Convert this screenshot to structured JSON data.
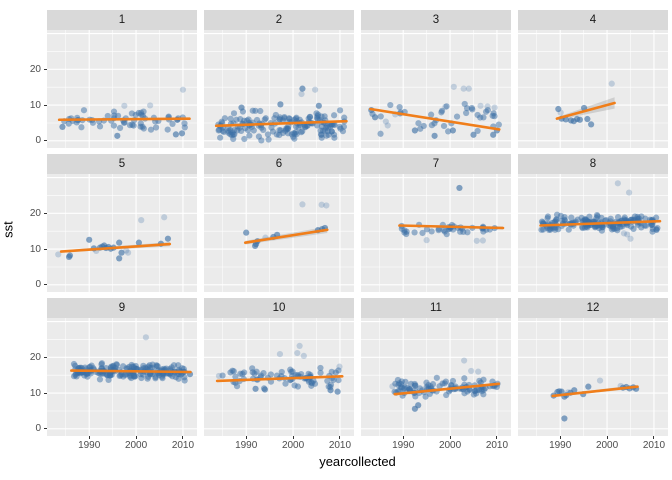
{
  "chart_data": {
    "type": "scatter",
    "title": "",
    "xlabel": "yearcollected",
    "ylabel": "sst",
    "facet_labels": [
      "1",
      "2",
      "3",
      "4",
      "5",
      "6",
      "7",
      "8",
      "9",
      "10",
      "11",
      "12"
    ],
    "x_ticks": [
      1990,
      2000,
      2010
    ],
    "y_ticks": [
      20,
      10,
      0
    ],
    "xlim": [
      1981,
      2013
    ],
    "ylim": [
      -2,
      31
    ],
    "grid": {
      "x_major": [
        1990,
        2000,
        2010
      ],
      "x_minor": [
        1985,
        1995,
        2005
      ],
      "y_major": [
        0,
        10,
        20,
        30
      ],
      "y_minor": [
        5,
        15,
        25
      ]
    },
    "legend": "none",
    "style": {
      "point_color": "#3c6fa5",
      "point_alpha": 0.5,
      "faint_alpha": 0.26,
      "point_radius": 3.1,
      "trend_color": "#f07e1a",
      "trend_width": 2.6,
      "band_color": "#777777",
      "band_alpha": 0.25,
      "panel_bg": "#ebebeb",
      "strip_bg": "#d9d9d9",
      "strip_text": "#1a1a1a",
      "grid_color": "#ffffff",
      "axis_text": "#4d4d4d",
      "axis_title": "#000000",
      "tick_color": "#333333"
    },
    "panels": [
      {
        "label": "1",
        "seed": 11,
        "cloud": {
          "n": 62,
          "x": [
            1984,
            2011
          ],
          "y": 5.8,
          "spread": 2.3
        },
        "points": [
          [
            1996,
            1.4
          ],
          [
            2008.5,
            1.8
          ],
          [
            1984.3,
            3.9
          ],
          [
            2009.8,
            2.1
          ]
        ],
        "faint": [
          [
            2010,
            14.3
          ],
          [
            1997.5,
            9.8
          ],
          [
            2003,
            9.9
          ]
        ],
        "trend": [
          [
            1983.6,
            5.9
          ],
          [
            2011.4,
            6.2
          ]
        ],
        "band": [
          0,
          0
        ]
      },
      {
        "label": "2",
        "seed": 22,
        "cloud": {
          "n": 170,
          "x": [
            1984,
            2011
          ],
          "y": 4.4,
          "spread": 2.9
        },
        "points": [
          [
            2002,
            14.6
          ],
          [
            1997.3,
            10.2
          ],
          [
            2005.5,
            9.8
          ],
          [
            1989,
            9.3
          ]
        ],
        "faint": [
          [
            2004.7,
            14.3
          ],
          [
            2001.8,
            13.1
          ]
        ],
        "trend": [
          [
            1983.6,
            4.2
          ],
          [
            2011.4,
            5.5
          ]
        ],
        "band": [
          0,
          0
        ]
      },
      {
        "label": "3",
        "seed": 33,
        "cloud": {
          "n": 38,
          "x": [
            1983,
            2010.5
          ],
          "y": 6.3,
          "spread": 2.9
        },
        "points": [
          [
            1996.7,
            1.4
          ],
          [
            2005,
            1.7
          ],
          [
            2009.2,
            1.7
          ],
          [
            2010,
            2.9
          ],
          [
            1992.5,
            2.9
          ],
          [
            2000.6,
            2.9
          ],
          [
            1983.2,
            8.6
          ],
          [
            1984,
            6.6
          ]
        ],
        "faint": [
          [
            2000.8,
            15.1
          ],
          [
            2002.9,
            14.6
          ],
          [
            2004,
            14.6
          ],
          [
            1986.3,
            5.4
          ],
          [
            1986.7,
            4.3
          ],
          [
            1988.3,
            7.4
          ],
          [
            1999,
            9.5
          ],
          [
            2006.5,
            9.8
          ],
          [
            2008,
            9.6
          ],
          [
            2009.5,
            9.3
          ]
        ],
        "trend": [
          [
            1983,
            8.9
          ],
          [
            2010.5,
            3.2
          ]
        ],
        "band": [
          0,
          0
        ]
      },
      {
        "label": "4",
        "seed": 44,
        "cloud": {
          "n": 0,
          "x": [
            1990,
            2001
          ],
          "y": 7,
          "spread": 1
        },
        "points": [
          [
            1989.6,
            8.9
          ],
          [
            1990.3,
            6.2
          ],
          [
            1991.2,
            6.0
          ],
          [
            1992.3,
            5.7
          ],
          [
            1992.9,
            5.5
          ],
          [
            1993.6,
            6.1
          ],
          [
            1994.2,
            5.9
          ],
          [
            1995.1,
            9.2
          ],
          [
            1995.8,
            6.1
          ],
          [
            1996.6,
            4.6
          ]
        ],
        "faint": [
          [
            1990.1,
            7.9
          ],
          [
            2001,
            16.0
          ]
        ],
        "trend": [
          [
            1989.3,
            6.2
          ],
          [
            2001.6,
            10.6
          ]
        ],
        "band": [
          0.4,
          1.6
        ]
      },
      {
        "label": "5",
        "seed": 55,
        "cloud": {
          "n": 0,
          "x": [
            1984,
            2007
          ],
          "y": 10,
          "spread": 1
        },
        "points": [
          [
            1985.7,
            7.8
          ],
          [
            1985.9,
            8.2
          ],
          [
            1990,
            12.6
          ],
          [
            1991,
            10.2
          ],
          [
            1992.3,
            10.4
          ],
          [
            1992.8,
            10.7
          ],
          [
            1993.2,
            11.0
          ],
          [
            1993.6,
            10.3
          ],
          [
            1994.1,
            10.6
          ],
          [
            1994.6,
            10.1
          ],
          [
            1995.2,
            10.4
          ],
          [
            1996.4,
            11.8
          ],
          [
            1996.4,
            7.4
          ],
          [
            1996.9,
            9.0
          ],
          [
            2000.6,
            11.8
          ],
          [
            2005.3,
            11.5
          ],
          [
            2006.8,
            12.9
          ]
        ],
        "faint": [
          [
            1983.4,
            8.5
          ],
          [
            1991.5,
            9.5
          ],
          [
            1997.9,
            9.6
          ],
          [
            1998.3,
            9.0
          ],
          [
            2001.1,
            18.1
          ],
          [
            2006,
            18.9
          ]
        ],
        "trend": [
          [
            1984,
            9.3
          ],
          [
            2007.2,
            11.4
          ]
        ],
        "band": [
          0.3,
          0.6
        ]
      },
      {
        "label": "6",
        "seed": 66,
        "cloud": {
          "n": 0,
          "x": [
            1990,
            2007
          ],
          "y": 13,
          "spread": 1
        },
        "points": [
          [
            1990,
            14.6
          ],
          [
            1991.9,
            10.9
          ],
          [
            1992.1,
            11.4
          ],
          [
            1992.4,
            12.2
          ],
          [
            1995.8,
            13.4
          ],
          [
            1996.6,
            14.0
          ],
          [
            2005.3,
            15.3
          ],
          [
            2006.2,
            15.6
          ],
          [
            2006.8,
            15.9
          ]
        ],
        "faint": [
          [
            1994.1,
            13.2
          ],
          [
            2002,
            22.5
          ],
          [
            2006.1,
            22.4
          ],
          [
            2007.1,
            22.2
          ]
        ],
        "trend": [
          [
            1989.8,
            11.8
          ],
          [
            2007.3,
            15.4
          ]
        ],
        "band": [
          0.5,
          0.9
        ]
      },
      {
        "label": "7",
        "seed": 77,
        "cloud": {
          "n": 40,
          "x": [
            1989.5,
            2011
          ],
          "y": 15.8,
          "spread": 1.25
        },
        "points": [
          [
            2002,
            27.1
          ]
        ],
        "faint": [
          [
            1995,
            12.5
          ],
          [
            2005.7,
            12.3
          ],
          [
            2007,
            12.4
          ]
        ],
        "trend": [
          [
            1989.2,
            16.6
          ],
          [
            2011.3,
            15.9
          ]
        ],
        "band": [
          0.25,
          0.45
        ]
      },
      {
        "label": "8",
        "seed": 88,
        "cloud": {
          "n": 180,
          "x": [
            1986,
            2011
          ],
          "y": 17.2,
          "spread": 1.65
        },
        "points": [],
        "faint": [
          [
            2002.3,
            28.4
          ],
          [
            2004.7,
            25.8
          ],
          [
            2003.6,
            14.4
          ],
          [
            2004.3,
            14.1
          ],
          [
            2005,
            12.9
          ]
        ],
        "trend": [
          [
            1985.8,
            16.6
          ],
          [
            2011.3,
            17.8
          ]
        ],
        "band": [
          0,
          0
        ]
      },
      {
        "label": "9",
        "seed": 99,
        "cloud": {
          "n": 190,
          "x": [
            1986.5,
            2010.5
          ],
          "y": 16.0,
          "spread": 1.6
        },
        "points": [
          [
            2011.5,
            15.3
          ]
        ],
        "faint": [
          [
            2002.1,
            25.6
          ]
        ],
        "trend": [
          [
            1986.2,
            16.3
          ],
          [
            2011.6,
            15.9
          ]
        ],
        "band": [
          0.15,
          0.4
        ]
      },
      {
        "label": "10",
        "seed": 110,
        "cloud": {
          "n": 75,
          "x": [
            1984,
            2010.3
          ],
          "y": 14.2,
          "spread": 2.0
        },
        "points": [
          [
            1992,
            11.2
          ],
          [
            1994,
            11.0
          ],
          [
            2008,
            10.8
          ],
          [
            2009.5,
            10.4
          ]
        ],
        "faint": [
          [
            2001.4,
            23.2
          ],
          [
            2000.9,
            21.2
          ],
          [
            1997.2,
            20.9
          ],
          [
            2002.3,
            20.4
          ],
          [
            1984.2,
            14.8
          ],
          [
            2009.9,
            17.4
          ]
        ],
        "trend": [
          [
            1983.8,
            13.4
          ],
          [
            2010.5,
            14.7
          ]
        ],
        "band": [
          0,
          0
        ]
      },
      {
        "label": "11",
        "seed": 121,
        "cloud": {
          "n": 100,
          "x": [
            1988,
            2010.5
          ],
          "y": 11.3,
          "spread": 2.0
        },
        "points": [
          [
            1992.5,
            5.6
          ],
          [
            1993.2,
            6.6
          ]
        ],
        "faint": [
          [
            2003,
            19.1
          ],
          [
            1987.7,
            11.9
          ],
          [
            2004.5,
            16.2
          ],
          [
            2006,
            16.0
          ]
        ],
        "trend": [
          [
            1988.2,
            9.7
          ],
          [
            2010.4,
            12.6
          ]
        ],
        "band": [
          0,
          0
        ]
      },
      {
        "label": "12",
        "seed": 132,
        "cloud": {
          "n": 0,
          "x": [
            1988,
            2007
          ],
          "y": 10.5,
          "spread": 1
        },
        "points": [
          [
            1988.6,
            9.3
          ],
          [
            1989.4,
            10.3
          ],
          [
            1989.8,
            10.5
          ],
          [
            1990.3,
            10.4
          ],
          [
            1990.9,
            9.0
          ],
          [
            1991.3,
            9.4
          ],
          [
            1992.2,
            10.1
          ],
          [
            1993,
            10.8
          ],
          [
            1994.9,
            9.7
          ],
          [
            1996,
            11.8
          ],
          [
            2003.4,
            11.5
          ],
          [
            2004.1,
            11.7
          ],
          [
            2004.8,
            11.3
          ],
          [
            2005.6,
            11.6
          ],
          [
            2006.2,
            11.2
          ],
          [
            1990.9,
            2.9
          ]
        ],
        "faint": [
          [
            1991.7,
            10.2
          ],
          [
            1998.5,
            13.5
          ],
          [
            2002.9,
            12.0
          ]
        ],
        "trend": [
          [
            1988.4,
            9.2
          ],
          [
            2006.5,
            11.8
          ]
        ],
        "band": [
          0.25,
          0.5
        ]
      }
    ]
  }
}
